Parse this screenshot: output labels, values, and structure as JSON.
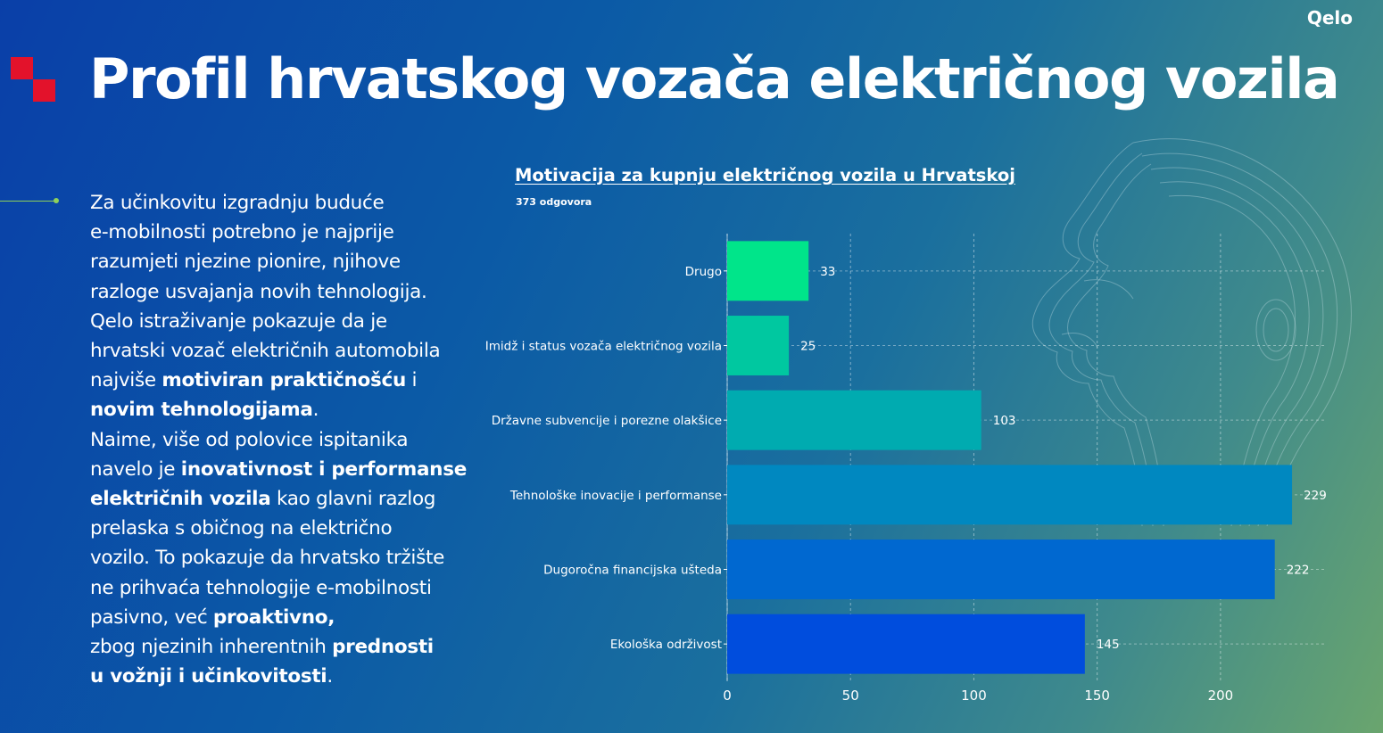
{
  "brand": "Qelo",
  "title": "Profil hrvatskog vozača električnog vozila",
  "body": [
    [
      {
        "t": "Za učinkovitu izgradnju buduće"
      }
    ],
    [
      {
        "t": "e-mobilnosti potrebno je najprije"
      }
    ],
    [
      {
        "t": "razumjeti njezine pionire, njihove"
      }
    ],
    [
      {
        "t": "razloge usvajanja novih tehnologija."
      }
    ],
    [
      {
        "t": "Qelo istraživanje pokazuje da je"
      }
    ],
    [
      {
        "t": "hrvatski vozač električnih automobila"
      }
    ],
    [
      {
        "t": "najviše "
      },
      {
        "t": "motiviran praktičnošću",
        "b": true
      },
      {
        "t": " i"
      }
    ],
    [
      {
        "t": "novim tehnologijama",
        "b": true
      },
      {
        "t": "."
      }
    ],
    [
      {
        "t": "Naime, više od polovice ispitanika"
      }
    ],
    [
      {
        "t": "navelo je "
      },
      {
        "t": "inovativnost i performanse",
        "b": true
      }
    ],
    [
      {
        "t": "električnih vozila",
        "b": true
      },
      {
        "t": " kao glavni razlog"
      }
    ],
    [
      {
        "t": "prelaska s običnog na električno"
      }
    ],
    [
      {
        "t": "vozilo. To pokazuje da hrvatsko tržište"
      }
    ],
    [
      {
        "t": "ne prihvaća tehnologije e-mobilnosti"
      }
    ],
    [
      {
        "t": "pasivno, već "
      },
      {
        "t": "proaktivno,",
        "b": true
      }
    ],
    [
      {
        "t": "zbog njezinih inherentnih "
      },
      {
        "t": "prednosti",
        "b": true
      }
    ],
    [
      {
        "t": "u vožnji i učinkovitosti",
        "b": true
      },
      {
        "t": "."
      }
    ]
  ],
  "chart_data": {
    "type": "bar",
    "orientation": "horizontal",
    "title": "Motivacija za kupnju električnog vozila u Hrvatskoj",
    "subtitle": "373 odgovora",
    "categories": [
      "Drugo",
      "Imidž i status vozača električnog vozila",
      "Državne subvencije i porezne olakšice",
      "Tehnološke inovacije i performanse",
      "Dugoročna financijska ušteda",
      "Ekološka održivost"
    ],
    "values": [
      33,
      25,
      103,
      229,
      222,
      145
    ],
    "colors": [
      "#00e58a",
      "#00c8a0",
      "#00abb0",
      "#0088c0",
      "#0068d0",
      "#004ddd"
    ],
    "xlim": [
      0,
      242
    ],
    "xticks": [
      0,
      50,
      100,
      150,
      200
    ],
    "grid": true,
    "legend": "none"
  }
}
